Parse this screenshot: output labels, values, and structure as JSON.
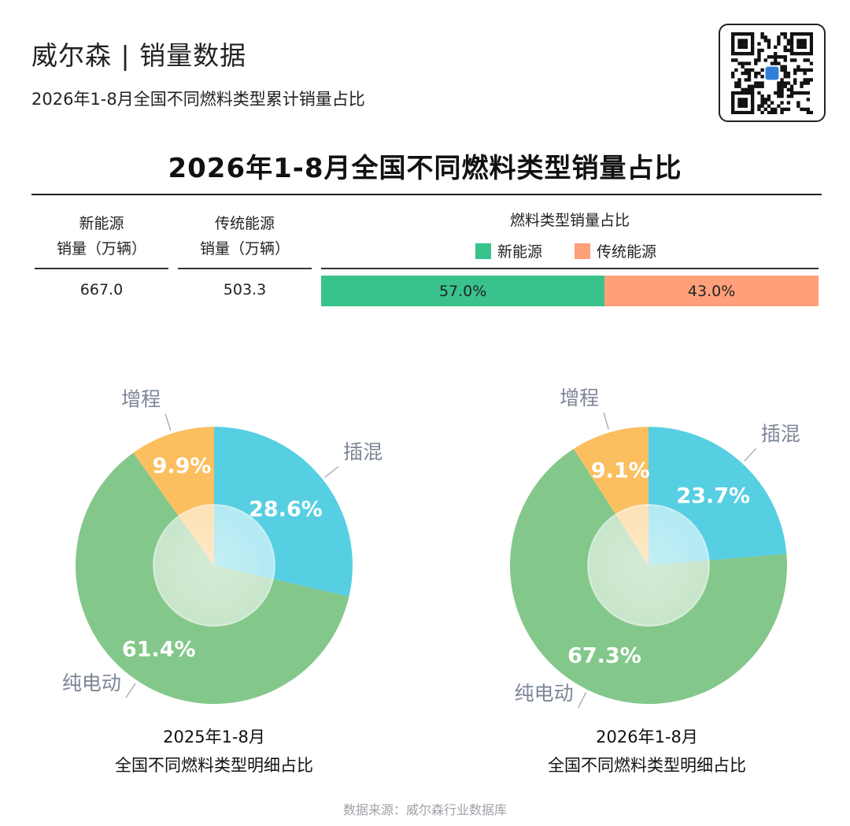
{
  "header": {
    "brand": "威尔森 | 销量数据",
    "subtitle": "2026年1-8月全国不同燃料类型累计销量占比",
    "qr_icon": "qr-code-icon"
  },
  "title": "2026年1-8月全国不同燃料类型销量占比",
  "summary": {
    "nev_head_1": "新能源",
    "nev_head_2": "销量（万辆）",
    "trad_head_1": "传统能源",
    "trad_head_2": "销量（万辆）",
    "share_head": "燃料类型销量占比",
    "nev_value": "667.0",
    "trad_value": "503.3",
    "legend": [
      {
        "label": "新能源",
        "color": "#3ac28d"
      },
      {
        "label": "传统能源",
        "color": "#ffa07a"
      }
    ],
    "bar_labels": [
      "57.0%",
      "43.0%"
    ]
  },
  "chart_data": [
    {
      "type": "bar",
      "orientation": "horizontal-stacked",
      "title": "燃料类型销量占比",
      "categories": [
        "新能源",
        "传统能源"
      ],
      "values": [
        57.0,
        43.0
      ],
      "colors": [
        "#3ac28d",
        "#ffa07a"
      ],
      "legend": "top"
    },
    {
      "type": "pie",
      "caption_1": "2025年1-8月",
      "caption_2": "全国不同燃料类型明细占比",
      "categories": [
        "插混",
        "纯电动",
        "增程"
      ],
      "values": [
        28.6,
        61.4,
        9.9
      ],
      "value_labels": [
        "28.6%",
        "61.4%",
        "9.9%"
      ],
      "colors": [
        "#56cfe3",
        "#84c78a",
        "#fbbf60"
      ]
    },
    {
      "type": "pie",
      "caption_1": "2026年1-8月",
      "caption_2": "全国不同燃料类型明细占比",
      "categories": [
        "插混",
        "纯电动",
        "增程"
      ],
      "values": [
        23.7,
        67.3,
        9.1
      ],
      "value_labels": [
        "23.7%",
        "67.3%",
        "9.1%"
      ],
      "colors": [
        "#56cfe3",
        "#84c78a",
        "#fbbf60"
      ]
    }
  ],
  "source": "数据来源：威尔森行业数据库"
}
